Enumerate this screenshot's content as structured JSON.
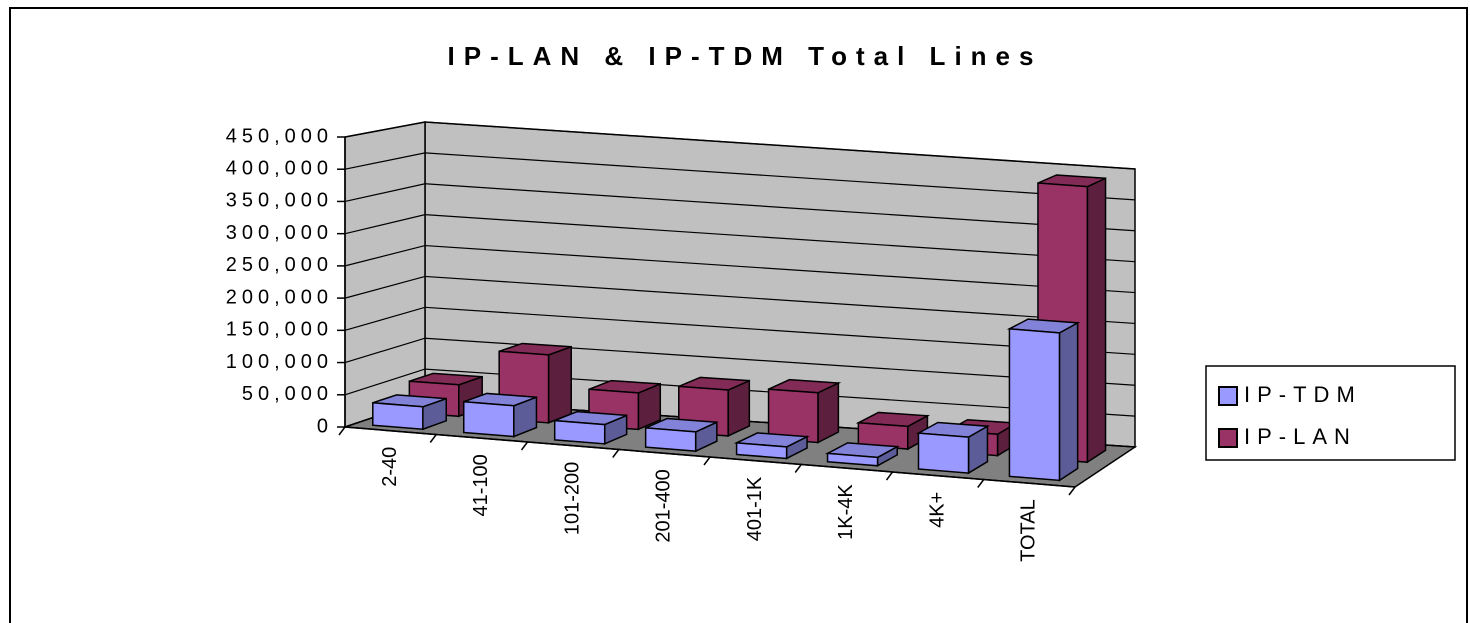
{
  "chart_data": {
    "type": "bar3d",
    "title": "IP-LAN & IP-TDM Total Lines",
    "categories": [
      "2-40",
      "41-100",
      "101-200",
      "201-400",
      "401-1K",
      "1K-4K",
      "4K+",
      "TOTAL"
    ],
    "series": [
      {
        "name": "IP-TDM",
        "color": "#9999ff",
        "values": [
          35000,
          48000,
          30000,
          30000,
          18000,
          13000,
          56000,
          230000
        ]
      },
      {
        "name": "IP-LAN",
        "color": "#993366",
        "values": [
          50000,
          108000,
          58000,
          73000,
          79000,
          36000,
          34000,
          438000
        ]
      }
    ],
    "ylim": [
      0,
      450000
    ],
    "yticks": [
      0,
      {
        "value": 50000,
        "label": "50,000"
      },
      {
        "value": 100000,
        "label": "100,000"
      },
      {
        "value": 150000,
        "label": "150,000"
      },
      {
        "value": 200000,
        "label": "200,000"
      },
      {
        "value": 250000,
        "label": "250,000"
      },
      {
        "value": 300000,
        "label": "300,000"
      },
      {
        "value": 350000,
        "label": "350,000"
      },
      {
        "value": 400000,
        "label": "400,000"
      },
      {
        "value": 450000,
        "label": "450,000"
      }
    ],
    "grid": true,
    "legend": "right"
  }
}
